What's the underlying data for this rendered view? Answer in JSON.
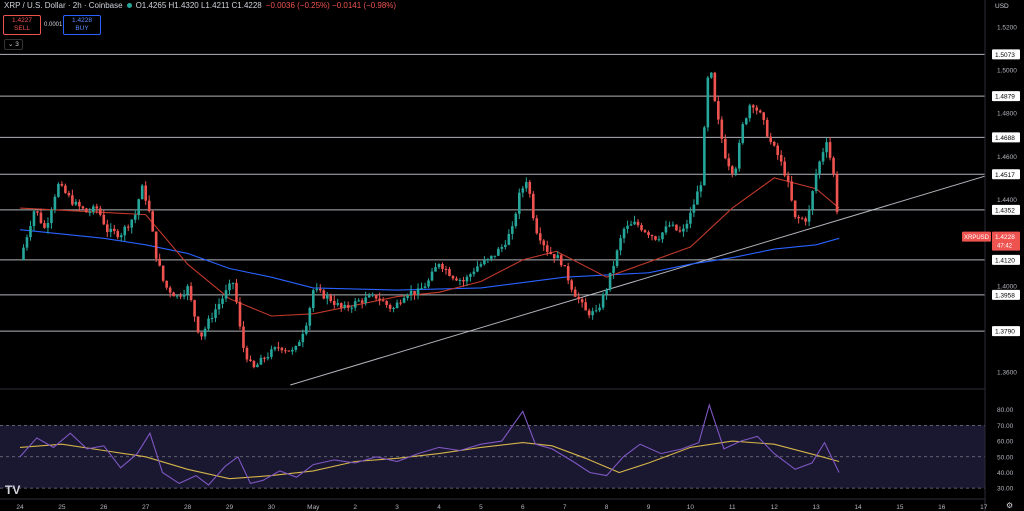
{
  "header": {
    "symbol": "XRP / U.S. Dollar · 2h · Coinbase",
    "ohlc": "O1.4265 H1.4320 L1.4211 C1.4228",
    "change": "−0.0036 (−0.25%) −0.0141 (−0.98%)",
    "status_color": "#26a69a"
  },
  "trade": {
    "sell_price": "1.4227",
    "sell_label": "SELL",
    "buy_price": "1.4228",
    "buy_label": "BUY",
    "spread": "0.0001"
  },
  "indicator_toggle": "⌄ 3",
  "price_scale": {
    "currency": "USD"
  },
  "colors": {
    "bull": "#26a69a",
    "bear": "#ef5350",
    "ema_fast": "#c0392b",
    "ema_slow": "#2962ff",
    "rsi": "#7e57c2",
    "rsi_ma": "#d4b44a",
    "hline": "#d1d4dc",
    "trendline": "#d1d4dc"
  },
  "footer": {
    "logo": "TV",
    "settings_icon": "gear-icon"
  },
  "chart_data": {
    "type": "candlestick",
    "title": "XRP / U.S. Dollar · 2h · Coinbase",
    "ylim": [
      1.354,
      1.526
    ],
    "y_ticks": [
      1.52,
      1.5,
      1.48,
      1.46,
      1.44,
      1.42,
      1.4,
      1.38,
      1.36
    ],
    "y_tick_labels": [
      "1.5200",
      "1.5000",
      "1.4800",
      "1.4600",
      "1.4400",
      "1.4200",
      "1.4000",
      "1.3800",
      "1.3600"
    ],
    "x_labels": [
      "24",
      "25",
      "26",
      "27",
      "28",
      "29",
      "30",
      "May",
      "2",
      "3",
      "4",
      "5",
      "6",
      "7",
      "8",
      "9",
      "10",
      "11",
      "12",
      "13",
      "14",
      "15",
      "16",
      "17"
    ],
    "horizontal_levels": [
      {
        "value": 1.5073,
        "label": "1.5073"
      },
      {
        "value": 1.4879,
        "label": "1.4879"
      },
      {
        "value": 1.4688,
        "label": "1.4688"
      },
      {
        "value": 1.4517,
        "label": "1.4517"
      },
      {
        "value": 1.4352,
        "label": "1.4352"
      },
      {
        "value": 1.412,
        "label": "1.4120"
      },
      {
        "value": 1.3958,
        "label": "1.3958"
      },
      {
        "value": 1.379,
        "label": "1.3790"
      }
    ],
    "trendline": {
      "from": {
        "day": 6.45,
        "price": 1.354
      },
      "to": {
        "day": 24.0,
        "price": 1.4565
      }
    },
    "current_price": {
      "symbol": "XRPUSD",
      "price": "1.4228",
      "countdown": "47:42",
      "value": 1.4228
    },
    "price_path": [
      {
        "day": 0.0,
        "price": 1.412
      },
      {
        "day": 0.35,
        "price": 1.436
      },
      {
        "day": 0.6,
        "price": 1.426
      },
      {
        "day": 0.9,
        "price": 1.447
      },
      {
        "day": 1.3,
        "price": 1.438
      },
      {
        "day": 1.6,
        "price": 1.434
      },
      {
        "day": 1.85,
        "price": 1.436
      },
      {
        "day": 2.1,
        "price": 1.425
      },
      {
        "day": 2.4,
        "price": 1.424
      },
      {
        "day": 2.75,
        "price": 1.433
      },
      {
        "day": 2.9,
        "price": 1.446
      },
      {
        "day": 3.05,
        "price": 1.438
      },
      {
        "day": 3.25,
        "price": 1.414
      },
      {
        "day": 3.45,
        "price": 1.4
      },
      {
        "day": 3.75,
        "price": 1.395
      },
      {
        "day": 4.0,
        "price": 1.399
      },
      {
        "day": 4.3,
        "price": 1.376
      },
      {
        "day": 4.6,
        "price": 1.387
      },
      {
        "day": 4.95,
        "price": 1.398
      },
      {
        "day": 5.1,
        "price": 1.402
      },
      {
        "day": 5.3,
        "price": 1.373
      },
      {
        "day": 5.55,
        "price": 1.361
      },
      {
        "day": 5.85,
        "price": 1.367
      },
      {
        "day": 6.2,
        "price": 1.372
      },
      {
        "day": 6.55,
        "price": 1.369
      },
      {
        "day": 6.85,
        "price": 1.384
      },
      {
        "day": 7.0,
        "price": 1.398
      },
      {
        "day": 7.4,
        "price": 1.394
      },
      {
        "day": 7.7,
        "price": 1.389
      },
      {
        "day": 8.1,
        "price": 1.393
      },
      {
        "day": 8.5,
        "price": 1.395
      },
      {
        "day": 8.9,
        "price": 1.389
      },
      {
        "day": 9.2,
        "price": 1.397
      },
      {
        "day": 9.5,
        "price": 1.397
      },
      {
        "day": 9.75,
        "price": 1.402
      },
      {
        "day": 10.0,
        "price": 1.411
      },
      {
        "day": 10.3,
        "price": 1.405
      },
      {
        "day": 10.6,
        "price": 1.402
      },
      {
        "day": 10.9,
        "price": 1.409
      },
      {
        "day": 11.2,
        "price": 1.412
      },
      {
        "day": 11.5,
        "price": 1.418
      },
      {
        "day": 11.75,
        "price": 1.426
      },
      {
        "day": 11.9,
        "price": 1.441
      },
      {
        "day": 12.1,
        "price": 1.45
      },
      {
        "day": 12.3,
        "price": 1.427
      },
      {
        "day": 12.6,
        "price": 1.416
      },
      {
        "day": 12.9,
        "price": 1.412
      },
      {
        "day": 13.2,
        "price": 1.398
      },
      {
        "day": 13.5,
        "price": 1.388
      },
      {
        "day": 13.75,
        "price": 1.387
      },
      {
        "day": 14.0,
        "price": 1.399
      },
      {
        "day": 14.2,
        "price": 1.412
      },
      {
        "day": 14.4,
        "price": 1.426
      },
      {
        "day": 14.7,
        "price": 1.429
      },
      {
        "day": 14.9,
        "price": 1.426
      },
      {
        "day": 15.2,
        "price": 1.422
      },
      {
        "day": 15.5,
        "price": 1.428
      },
      {
        "day": 15.8,
        "price": 1.424
      },
      {
        "day": 16.0,
        "price": 1.433
      },
      {
        "day": 16.25,
        "price": 1.448
      },
      {
        "day": 16.45,
        "price": 1.505
      },
      {
        "day": 16.6,
        "price": 1.482
      },
      {
        "day": 16.85,
        "price": 1.459
      },
      {
        "day": 17.05,
        "price": 1.452
      },
      {
        "day": 17.25,
        "price": 1.474
      },
      {
        "day": 17.45,
        "price": 1.486
      },
      {
        "day": 17.7,
        "price": 1.478
      },
      {
        "day": 17.9,
        "price": 1.467
      },
      {
        "day": 18.1,
        "price": 1.46
      },
      {
        "day": 18.3,
        "price": 1.45
      },
      {
        "day": 18.5,
        "price": 1.431
      },
      {
        "day": 18.8,
        "price": 1.431
      },
      {
        "day": 19.0,
        "price": 1.452
      },
      {
        "day": 19.25,
        "price": 1.468
      },
      {
        "day": 19.45,
        "price": 1.448
      },
      {
        "day": 19.55,
        "price": 1.4228
      }
    ],
    "ema_fast": [
      {
        "day": 0.0,
        "price": 1.436
      },
      {
        "day": 2.0,
        "price": 1.434
      },
      {
        "day": 3.0,
        "price": 1.433
      },
      {
        "day": 4.0,
        "price": 1.41
      },
      {
        "day": 5.0,
        "price": 1.394
      },
      {
        "day": 6.0,
        "price": 1.386
      },
      {
        "day": 7.0,
        "price": 1.387
      },
      {
        "day": 8.0,
        "price": 1.391
      },
      {
        "day": 9.0,
        "price": 1.395
      },
      {
        "day": 10.0,
        "price": 1.397
      },
      {
        "day": 11.0,
        "price": 1.402
      },
      {
        "day": 12.0,
        "price": 1.412
      },
      {
        "day": 12.8,
        "price": 1.416
      },
      {
        "day": 14.0,
        "price": 1.404
      },
      {
        "day": 15.0,
        "price": 1.411
      },
      {
        "day": 16.0,
        "price": 1.418
      },
      {
        "day": 17.0,
        "price": 1.436
      },
      {
        "day": 18.0,
        "price": 1.45
      },
      {
        "day": 19.0,
        "price": 1.445
      },
      {
        "day": 19.55,
        "price": 1.436
      }
    ],
    "ema_slow": [
      {
        "day": 0.0,
        "price": 1.426
      },
      {
        "day": 2.0,
        "price": 1.422
      },
      {
        "day": 3.0,
        "price": 1.419
      },
      {
        "day": 4.0,
        "price": 1.415
      },
      {
        "day": 5.0,
        "price": 1.408
      },
      {
        "day": 6.0,
        "price": 1.404
      },
      {
        "day": 7.0,
        "price": 1.399
      },
      {
        "day": 9.0,
        "price": 1.398
      },
      {
        "day": 11.0,
        "price": 1.399
      },
      {
        "day": 13.0,
        "price": 1.404
      },
      {
        "day": 15.0,
        "price": 1.406
      },
      {
        "day": 16.0,
        "price": 1.41
      },
      {
        "day": 17.0,
        "price": 1.413
      },
      {
        "day": 18.0,
        "price": 1.417
      },
      {
        "day": 19.0,
        "price": 1.419
      },
      {
        "day": 19.55,
        "price": 1.422
      }
    ],
    "rsi": {
      "ylim": [
        25,
        90
      ],
      "ticks": [
        80,
        70,
        60,
        50,
        40,
        30
      ],
      "tick_labels": [
        "80.00",
        "70.00",
        "60.00",
        "50.00",
        "40.00",
        "30.00"
      ],
      "band_upper": 70,
      "band_mid": 50,
      "band_lower": 30,
      "rsi_path": [
        {
          "day": 0.0,
          "value": 50
        },
        {
          "day": 0.4,
          "value": 62
        },
        {
          "day": 0.8,
          "value": 56
        },
        {
          "day": 1.2,
          "value": 65
        },
        {
          "day": 1.6,
          "value": 55
        },
        {
          "day": 2.0,
          "value": 57
        },
        {
          "day": 2.4,
          "value": 43
        },
        {
          "day": 2.8,
          "value": 52
        },
        {
          "day": 3.1,
          "value": 65
        },
        {
          "day": 3.4,
          "value": 40
        },
        {
          "day": 3.8,
          "value": 33
        },
        {
          "day": 4.2,
          "value": 38
        },
        {
          "day": 4.5,
          "value": 32
        },
        {
          "day": 4.9,
          "value": 44
        },
        {
          "day": 5.2,
          "value": 50
        },
        {
          "day": 5.5,
          "value": 33
        },
        {
          "day": 5.8,
          "value": 35
        },
        {
          "day": 6.2,
          "value": 41
        },
        {
          "day": 6.6,
          "value": 37
        },
        {
          "day": 7.0,
          "value": 45
        },
        {
          "day": 7.5,
          "value": 48
        },
        {
          "day": 8.0,
          "value": 46
        },
        {
          "day": 8.5,
          "value": 50
        },
        {
          "day": 9.0,
          "value": 47
        },
        {
          "day": 9.5,
          "value": 52
        },
        {
          "day": 10.0,
          "value": 56
        },
        {
          "day": 10.5,
          "value": 54
        },
        {
          "day": 11.0,
          "value": 58
        },
        {
          "day": 11.5,
          "value": 60
        },
        {
          "day": 12.0,
          "value": 79
        },
        {
          "day": 12.3,
          "value": 58
        },
        {
          "day": 12.7,
          "value": 55
        },
        {
          "day": 13.2,
          "value": 47
        },
        {
          "day": 13.6,
          "value": 40
        },
        {
          "day": 14.0,
          "value": 38
        },
        {
          "day": 14.4,
          "value": 50
        },
        {
          "day": 14.8,
          "value": 58
        },
        {
          "day": 15.3,
          "value": 52
        },
        {
          "day": 15.8,
          "value": 55
        },
        {
          "day": 16.2,
          "value": 59
        },
        {
          "day": 16.45,
          "value": 83
        },
        {
          "day": 16.8,
          "value": 55
        },
        {
          "day": 17.2,
          "value": 60
        },
        {
          "day": 17.6,
          "value": 63
        },
        {
          "day": 18.0,
          "value": 52
        },
        {
          "day": 18.5,
          "value": 42
        },
        {
          "day": 18.9,
          "value": 46
        },
        {
          "day": 19.2,
          "value": 59
        },
        {
          "day": 19.55,
          "value": 40
        }
      ],
      "ma_path": [
        {
          "day": 0.0,
          "value": 56
        },
        {
          "day": 1.0,
          "value": 58
        },
        {
          "day": 2.0,
          "value": 54
        },
        {
          "day": 3.0,
          "value": 50
        },
        {
          "day": 4.0,
          "value": 42
        },
        {
          "day": 5.0,
          "value": 36
        },
        {
          "day": 6.0,
          "value": 38
        },
        {
          "day": 7.0,
          "value": 41
        },
        {
          "day": 8.0,
          "value": 47
        },
        {
          "day": 9.0,
          "value": 49
        },
        {
          "day": 10.0,
          "value": 52
        },
        {
          "day": 11.0,
          "value": 56
        },
        {
          "day": 12.0,
          "value": 59
        },
        {
          "day": 12.7,
          "value": 57
        },
        {
          "day": 13.5,
          "value": 49
        },
        {
          "day": 14.3,
          "value": 40
        },
        {
          "day": 15.0,
          "value": 46
        },
        {
          "day": 16.0,
          "value": 56
        },
        {
          "day": 17.0,
          "value": 60
        },
        {
          "day": 18.0,
          "value": 58
        },
        {
          "day": 19.0,
          "value": 51
        },
        {
          "day": 19.55,
          "value": 47
        }
      ]
    }
  }
}
